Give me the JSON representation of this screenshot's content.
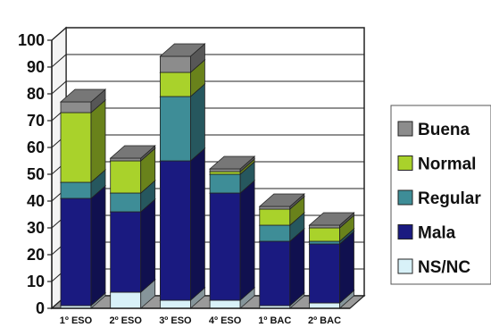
{
  "chart_data": {
    "type": "bar",
    "stacked": true,
    "three_d": true,
    "categories": [
      "1º ESO",
      "2º ESO",
      "3º ESO",
      "4º ESO",
      "1º BAC",
      "2º BAC"
    ],
    "series": [
      {
        "name": "NS/NC",
        "color": "#d8f1f8",
        "values": [
          1,
          6,
          3,
          3,
          1,
          2
        ]
      },
      {
        "name": "Mala",
        "color": "#1a1a80",
        "values": [
          40,
          30,
          52,
          40,
          24,
          22
        ]
      },
      {
        "name": "Regular",
        "color": "#3e8d97",
        "values": [
          6,
          7,
          24,
          7,
          6,
          1
        ]
      },
      {
        "name": "Normal",
        "color": "#a9d22b",
        "values": [
          26,
          12,
          9,
          1,
          6,
          5
        ]
      },
      {
        "name": "Buena",
        "color": "#8c8c8c",
        "values": [
          4,
          1,
          6,
          1,
          1,
          1
        ]
      }
    ],
    "legend_order": [
      "Buena",
      "Normal",
      "Regular",
      "Mala",
      "NS/NC"
    ],
    "legend_position": "right",
    "ylim": [
      0,
      100
    ],
    "yticks": [
      0,
      10,
      20,
      30,
      40,
      50,
      60,
      70,
      80,
      90,
      100
    ],
    "grid": true,
    "title": "",
    "xlabel": "",
    "ylabel": ""
  }
}
